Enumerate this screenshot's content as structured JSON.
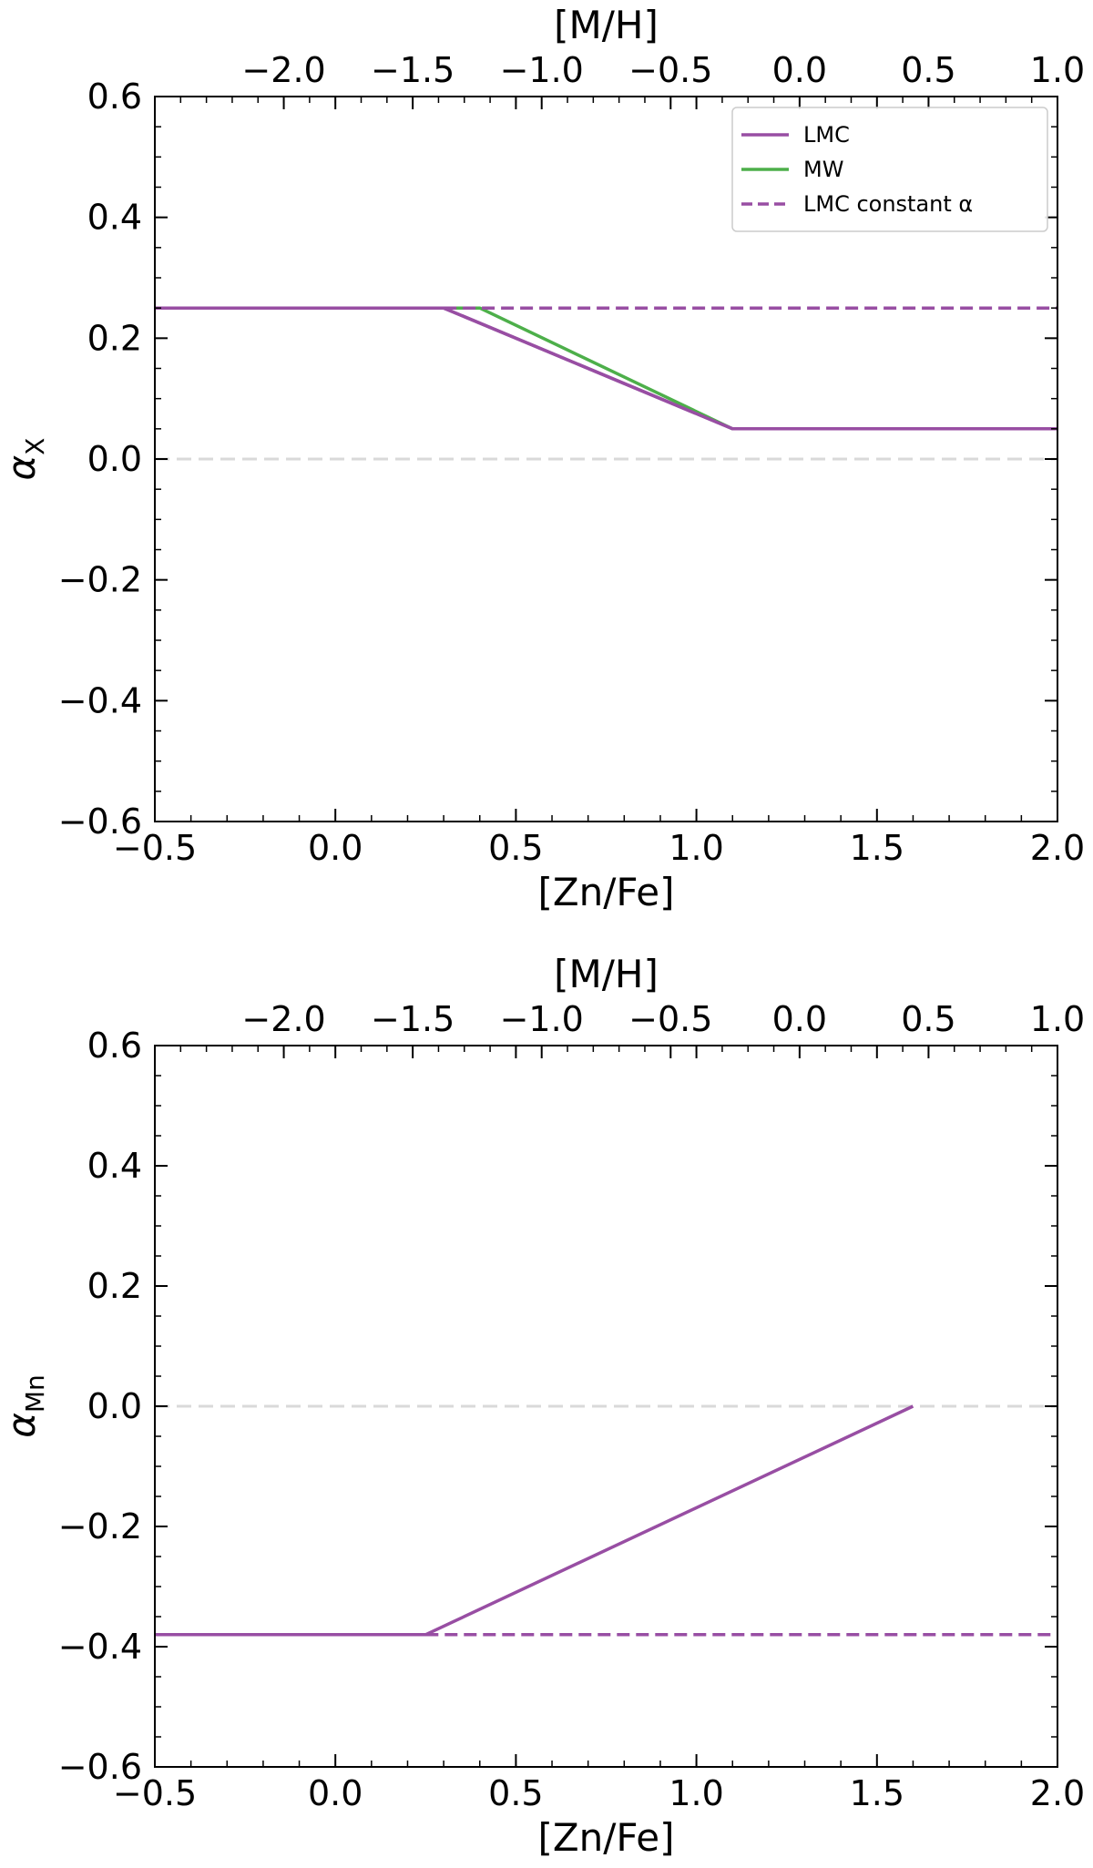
{
  "chart_data": [
    {
      "type": "line",
      "panel": "top",
      "xlabel": "[Zn/Fe]",
      "x2label": "[M/H]",
      "ylabel": "α",
      "ylabel_sub": "X",
      "xlim": [
        -0.5,
        2.0
      ],
      "ylim": [
        -0.6,
        0.6
      ],
      "x2lim": [
        -2.5,
        1.0
      ],
      "xticks": [
        -0.5,
        0.0,
        0.5,
        1.0,
        1.5,
        2.0
      ],
      "xtick_labels": [
        "−0.5",
        "0.0",
        "0.5",
        "1.0",
        "1.5",
        "2.0"
      ],
      "yticks": [
        -0.6,
        -0.4,
        -0.2,
        0.0,
        0.2,
        0.4,
        0.6
      ],
      "ytick_labels": [
        "−0.6",
        "−0.4",
        "−0.2",
        "0.0",
        "0.2",
        "0.4",
        "0.6"
      ],
      "x2ticks": [
        -2.0,
        -1.5,
        -1.0,
        -0.5,
        0.0,
        0.5,
        1.0
      ],
      "x2tick_labels": [
        "−2.0",
        "−1.5",
        "−1.0",
        "−0.5",
        "0.0",
        "0.5",
        "1.0"
      ],
      "reference_line_y": 0.0,
      "legend_position": "top-right",
      "series": [
        {
          "name": "LMC",
          "color": "#984ea3",
          "style": "solid",
          "x": [
            -0.5,
            0.3,
            1.1,
            2.0
          ],
          "y": [
            0.25,
            0.25,
            0.05,
            0.05
          ]
        },
        {
          "name": "MW",
          "color": "#4daf4a",
          "style": "solid",
          "x": [
            -0.5,
            0.4,
            1.1,
            2.0
          ],
          "y": [
            0.25,
            0.25,
            0.05,
            0.05
          ]
        },
        {
          "name": "LMC constant α",
          "color": "#984ea3",
          "style": "dashed",
          "x": [
            0.3,
            2.0
          ],
          "y": [
            0.25,
            0.25
          ]
        }
      ]
    },
    {
      "type": "line",
      "panel": "bottom",
      "xlabel": "[Zn/Fe]",
      "x2label": "[M/H]",
      "ylabel": "α",
      "ylabel_sub": "Mn",
      "xlim": [
        -0.5,
        2.0
      ],
      "ylim": [
        -0.6,
        0.6
      ],
      "x2lim": [
        -2.5,
        1.0
      ],
      "xticks": [
        -0.5,
        0.0,
        0.5,
        1.0,
        1.5,
        2.0
      ],
      "xtick_labels": [
        "−0.5",
        "0.0",
        "0.5",
        "1.0",
        "1.5",
        "2.0"
      ],
      "yticks": [
        -0.6,
        -0.4,
        -0.2,
        0.0,
        0.2,
        0.4,
        0.6
      ],
      "ytick_labels": [
        "−0.6",
        "−0.4",
        "−0.2",
        "0.0",
        "0.2",
        "0.4",
        "0.6"
      ],
      "x2ticks": [
        -2.0,
        -1.5,
        -1.0,
        -0.5,
        0.0,
        0.5,
        1.0
      ],
      "x2tick_labels": [
        "−2.0",
        "−1.5",
        "−1.0",
        "−0.5",
        "0.0",
        "0.5",
        "1.0"
      ],
      "reference_line_y": 0.0,
      "series": [
        {
          "color": "#984ea3",
          "style": "solid",
          "x": [
            -0.5,
            0.25,
            1.6
          ],
          "y": [
            -0.38,
            -0.38,
            0.0
          ]
        },
        {
          "color": "#984ea3",
          "style": "dashed",
          "x": [
            0.25,
            2.0
          ],
          "y": [
            -0.38,
            -0.38
          ]
        }
      ]
    }
  ]
}
